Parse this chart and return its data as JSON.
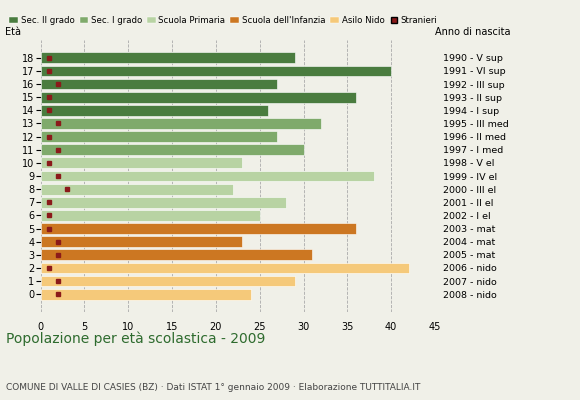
{
  "ages": [
    18,
    17,
    16,
    15,
    14,
    13,
    12,
    11,
    10,
    9,
    8,
    7,
    6,
    5,
    4,
    3,
    2,
    1,
    0
  ],
  "years": [
    "1990 - V sup",
    "1991 - VI sup",
    "1992 - III sup",
    "1993 - II sup",
    "1994 - I sup",
    "1995 - III med",
    "1996 - II med",
    "1997 - I med",
    "1998 - V el",
    "1999 - IV el",
    "2000 - III el",
    "2001 - II el",
    "2002 - I el",
    "2003 - mat",
    "2004 - mat",
    "2005 - mat",
    "2006 - nido",
    "2007 - nido",
    "2008 - nido"
  ],
  "bar_values": [
    29,
    40,
    27,
    36,
    26,
    32,
    27,
    30,
    23,
    38,
    22,
    28,
    25,
    36,
    23,
    31,
    42,
    29,
    24
  ],
  "stranieri": [
    1,
    1,
    2,
    1,
    1,
    2,
    1,
    2,
    1,
    2,
    3,
    1,
    1,
    1,
    2,
    2,
    1,
    2,
    2
  ],
  "bar_colors": [
    "#4a7c3f",
    "#4a7c3f",
    "#4a7c3f",
    "#4a7c3f",
    "#4a7c3f",
    "#7faa6b",
    "#7faa6b",
    "#7faa6b",
    "#b8d3a3",
    "#b8d3a3",
    "#b8d3a3",
    "#b8d3a3",
    "#b8d3a3",
    "#cc7722",
    "#cc7722",
    "#cc7722",
    "#f5c97a",
    "#f5c97a",
    "#f5c97a"
  ],
  "stranieri_color": "#8b1a1a",
  "background_color": "#f0f0e8",
  "title": "Popolazione per età scolastica - 2009",
  "subtitle": "COMUNE DI VALLE DI CASIES (BZ) · Dati ISTAT 1° gennaio 2009 · Elaborazione TUTTITALIA.IT",
  "label_eta": "Età",
  "label_anno": "Anno di nascita",
  "legend_labels": [
    "Sec. II grado",
    "Sec. I grado",
    "Scuola Primaria",
    "Scuola dell'Infanzia",
    "Asilo Nido",
    "Stranieri"
  ],
  "legend_colors": [
    "#4a7c3f",
    "#7faa6b",
    "#b8d3a3",
    "#cc7722",
    "#f5c97a",
    "#8b1a1a"
  ],
  "xlim": [
    0,
    45
  ],
  "xticks": [
    0,
    5,
    10,
    15,
    20,
    25,
    30,
    35,
    40,
    45
  ],
  "grid_color": "#aaaaaa",
  "bar_height": 0.82,
  "title_color": "#2e6b2e",
  "subtitle_color": "#444444",
  "title_fontsize": 10,
  "subtitle_fontsize": 6.5,
  "tick_fontsize": 7,
  "year_fontsize": 6.8
}
